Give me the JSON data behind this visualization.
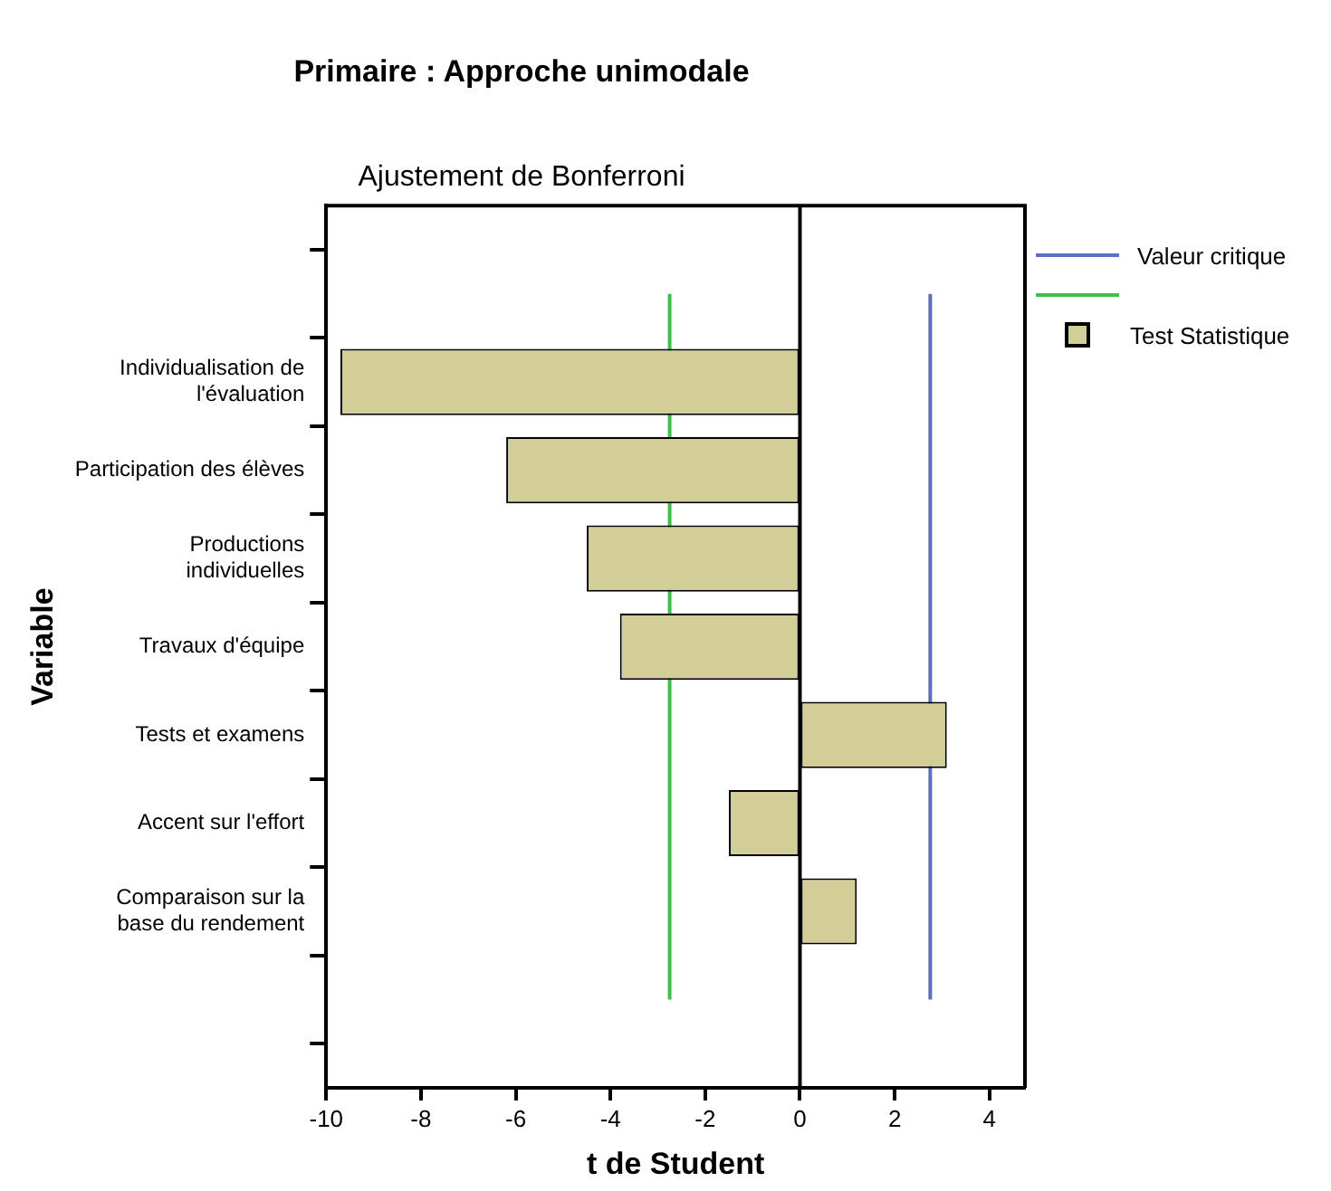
{
  "chart_data": {
    "type": "bar",
    "orientation": "horizontal",
    "title": "Primaire : Approche unimodale",
    "subtitle": "Ajustement de Bonferroni",
    "xlabel": "t de Student",
    "ylabel": "Variable",
    "categories": [
      null,
      "Individualisation de l'évaluation",
      "Participation des élèves",
      "Productions individuelles",
      "Travaux d'équipe",
      "Tests et examens",
      "Accent sur l'effort",
      "Comparaison sur la base du rendement",
      null
    ],
    "series": [
      {
        "name": "Test Statistique",
        "color": "#d3ce98",
        "values": [
          null,
          -9.7,
          -6.2,
          -4.5,
          -3.8,
          3.1,
          -1.5,
          1.2,
          null
        ]
      }
    ],
    "xlim": [
      -10,
      4.75
    ],
    "xticks": [
      -10,
      -8,
      -6,
      -4,
      -2,
      0,
      2,
      4
    ],
    "ref_lines": [
      {
        "axis": "x",
        "value": 2.75,
        "label": "Valeur critique",
        "color": "#5b6fc4"
      },
      {
        "axis": "x",
        "value": -2.75,
        "color": "#3cc24a"
      },
      {
        "axis": "x",
        "value": 0,
        "color": "#000000"
      }
    ],
    "grid": false,
    "legend": "right"
  }
}
